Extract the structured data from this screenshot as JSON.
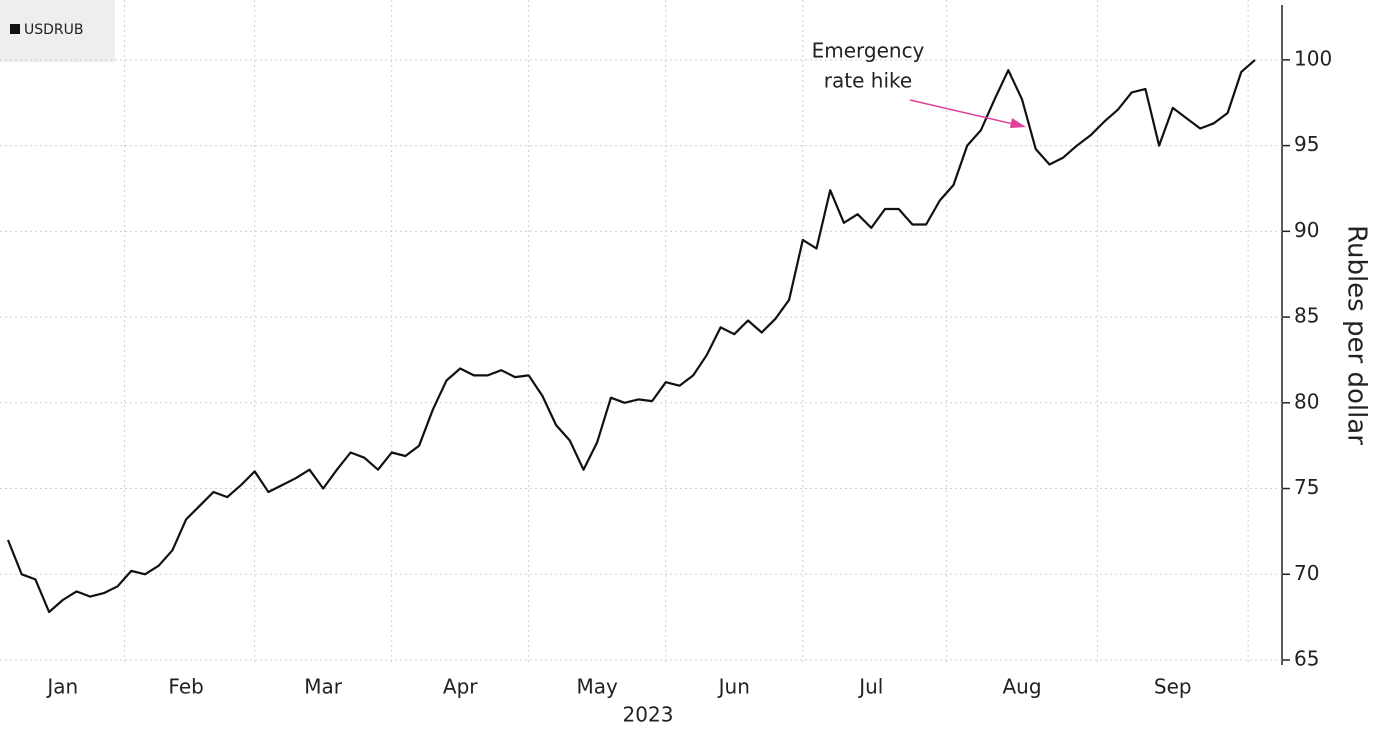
{
  "chart_data": {
    "type": "line",
    "legend": "USDRUB",
    "y_label": "Rubles per dollar",
    "x_label": "2023",
    "annotation": [
      "Emergency",
      "rate hike"
    ],
    "annotation_color": "#e0409a",
    "categories": [
      null,
      null,
      null,
      null,
      "Jan",
      null,
      null,
      null,
      null,
      null,
      null,
      null,
      null,
      "Feb",
      null,
      null,
      null,
      null,
      null,
      null,
      null,
      null,
      null,
      "Mar",
      null,
      null,
      null,
      null,
      null,
      null,
      null,
      null,
      null,
      "Apr",
      null,
      null,
      null,
      null,
      null,
      null,
      null,
      null,
      null,
      "May",
      null,
      null,
      null,
      null,
      null,
      null,
      null,
      null,
      null,
      "Jun",
      null,
      null,
      null,
      null,
      null,
      null,
      null,
      null,
      null,
      "Jul",
      null,
      null,
      null,
      null,
      null,
      null,
      null,
      null,
      null,
      null,
      "Aug",
      null,
      null,
      null,
      null,
      null,
      null,
      null,
      null,
      null,
      null,
      "Sep",
      null,
      null,
      null,
      null,
      null,
      null
    ],
    "series": [
      {
        "name": "USDRUB",
        "color": "#111111",
        "values": [
          72.0,
          70,
          69.7,
          67.8,
          68.5,
          69,
          68.7,
          68.9,
          69.3,
          70.2,
          70,
          70.5,
          71.4,
          73.2,
          74,
          74.8,
          74.5,
          75.2,
          76,
          74.8,
          75.2,
          75.6,
          76.1,
          75,
          76.1,
          77.1,
          76.8,
          76.1,
          77.1,
          76.9,
          77.5,
          79.6,
          81.3,
          82,
          81.6,
          81.6,
          81.9,
          81.5,
          81.6,
          80.4,
          78.7,
          77.8,
          76.1,
          77.7,
          80.3,
          80,
          80.2,
          80.1,
          81.2,
          81,
          81.6,
          82.8,
          84.4,
          84,
          84.8,
          84.1,
          84.9,
          86,
          89.5,
          89,
          92.4,
          90.5,
          91,
          90.2,
          91.3,
          91.3,
          90.4,
          90.4,
          91.8,
          92.7,
          95,
          95.9,
          97.7,
          99.4,
          97.7,
          94.8,
          93.9,
          94.3,
          95,
          95.6,
          96.4,
          97.1,
          98.1,
          98.3,
          95,
          97.2,
          96.6,
          96,
          96.3,
          96.9,
          99.3,
          100
        ]
      }
    ],
    "ylim": [
      65,
      103.2
    ],
    "yticks": [
      65,
      70,
      75,
      80,
      85,
      90,
      95,
      100
    ],
    "grid": true
  }
}
